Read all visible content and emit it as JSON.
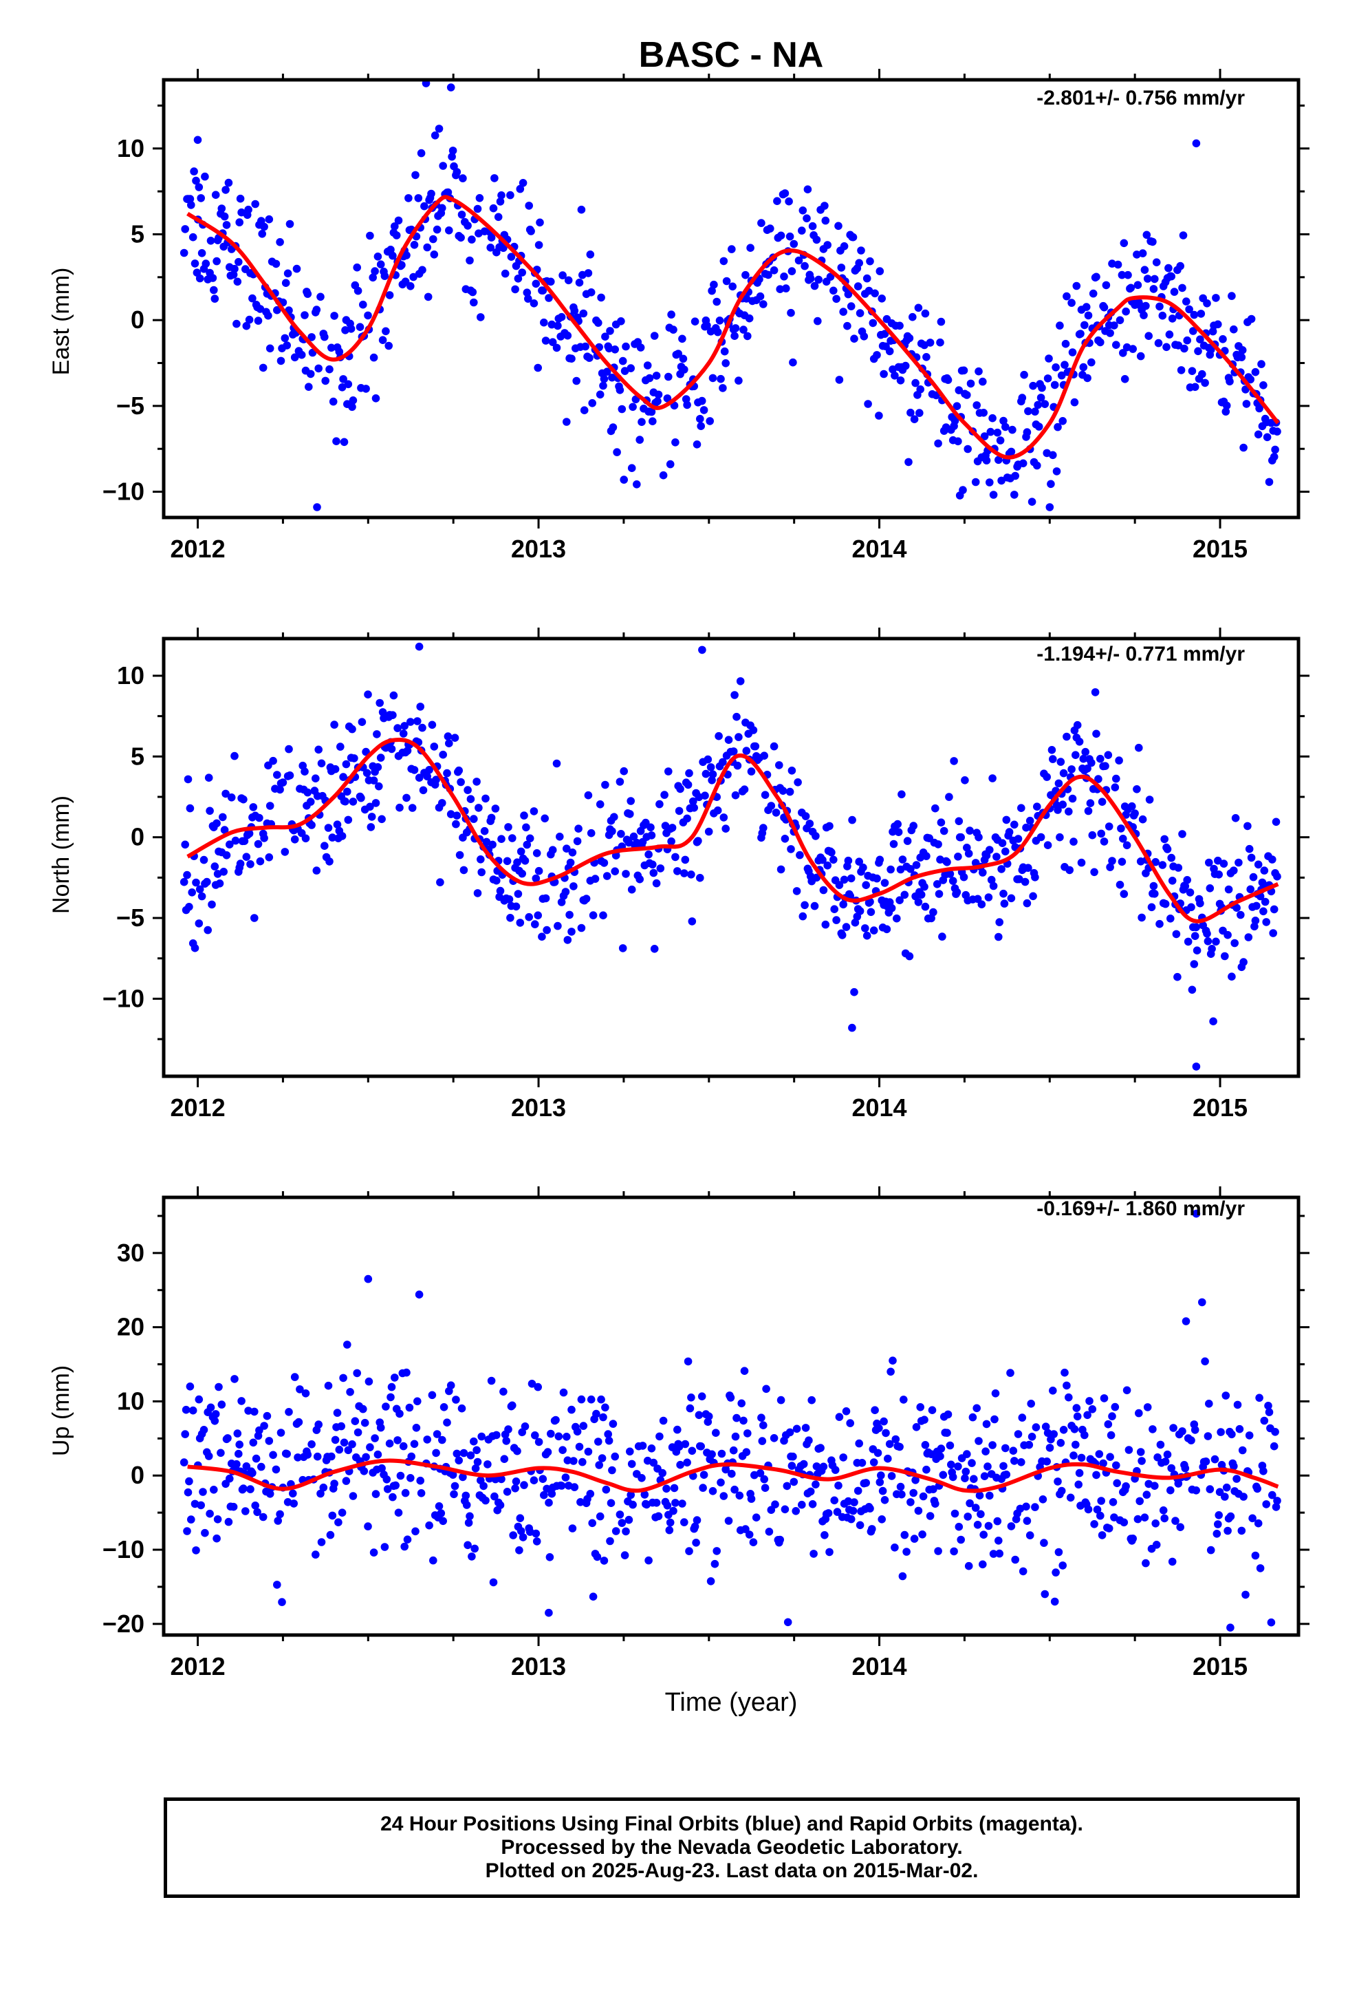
{
  "chart_data": [
    {
      "type": "scatter",
      "panel": "east",
      "title": "BASC - NA",
      "ylabel": "East (mm)",
      "xlabel": "",
      "rate_label": "-2.801+/- 0.756 mm/yr",
      "xlim": [
        2011.9,
        2015.23
      ],
      "ylim": [
        -11.5,
        14
      ],
      "x_ticks": [
        2012,
        2013,
        2014,
        2015
      ],
      "x_tick_labels": [
        "2012",
        "2013",
        "2014",
        "2015"
      ],
      "y_ticks": [
        -10,
        -5,
        0,
        5,
        10
      ],
      "y_tick_labels": [
        "−10",
        "−5",
        "0",
        "5",
        "10"
      ],
      "grid": false,
      "series": [
        {
          "kind": "points",
          "color": "#0000ff",
          "mean_curve": "fit",
          "scatter": 2.2,
          "outliers": [
            [
              2012.35,
              -10.9
            ],
            [
              2012.67,
              13.8
            ],
            [
              2014.5,
              -10.9
            ],
            [
              2014.93,
              10.3
            ],
            [
              2012.0,
              10.5
            ]
          ]
        },
        {
          "kind": "fit",
          "color": "#ff0000",
          "x": [
            2011.97,
            2012.1,
            2012.2,
            2012.3,
            2012.4,
            2012.5,
            2012.6,
            2012.7,
            2012.75,
            2012.85,
            2013.0,
            2013.1,
            2013.2,
            2013.3,
            2013.37,
            2013.5,
            2013.6,
            2013.72,
            2013.85,
            2014.0,
            2014.15,
            2014.25,
            2014.38,
            2014.5,
            2014.6,
            2014.7,
            2014.75,
            2014.85,
            2014.95,
            2015.05,
            2015.17
          ],
          "y": [
            6.2,
            4.5,
            2.0,
            -0.7,
            -2.3,
            -0.5,
            4.0,
            6.8,
            7.0,
            5.5,
            2.5,
            0.0,
            -2.5,
            -4.5,
            -5.0,
            -2.5,
            1.5,
            4.0,
            3.0,
            0.0,
            -3.5,
            -6.0,
            -8.0,
            -6.0,
            -1.5,
            0.7,
            1.3,
            1.0,
            -0.8,
            -3.0,
            -6.0
          ]
        }
      ]
    },
    {
      "type": "scatter",
      "panel": "north",
      "ylabel": "North (mm)",
      "xlabel": "",
      "rate_label": "-1.194+/- 0.771 mm/yr",
      "xlim": [
        2011.9,
        2015.23
      ],
      "ylim": [
        -14.8,
        12.3
      ],
      "x_ticks": [
        2012,
        2013,
        2014,
        2015
      ],
      "x_tick_labels": [
        "2012",
        "2013",
        "2014",
        "2015"
      ],
      "y_ticks": [
        -10,
        -5,
        0,
        5,
        10
      ],
      "y_tick_labels": [
        "−10",
        "−5",
        "0",
        "5",
        "10"
      ],
      "grid": false,
      "series": [
        {
          "kind": "points",
          "color": "#0000ff",
          "mean_curve": "fit",
          "scatter": 2.0,
          "outliers": [
            [
              2012.65,
              11.8
            ],
            [
              2013.48,
              11.6
            ],
            [
              2013.92,
              -11.8
            ],
            [
              2014.93,
              -14.2
            ],
            [
              2014.98,
              -11.4
            ]
          ]
        },
        {
          "kind": "fit",
          "color": "#ff0000",
          "x": [
            2011.97,
            2012.1,
            2012.2,
            2012.3,
            2012.4,
            2012.5,
            2012.57,
            2012.65,
            2012.75,
            2012.85,
            2012.95,
            2013.05,
            2013.2,
            2013.35,
            2013.45,
            2013.58,
            2013.7,
            2013.8,
            2013.9,
            2014.0,
            2014.1,
            2014.2,
            2014.3,
            2014.4,
            2014.5,
            2014.58,
            2014.65,
            2014.75,
            2014.85,
            2014.93,
            2015.05,
            2015.17
          ],
          "y": [
            -1.2,
            0.3,
            0.6,
            0.8,
            2.5,
            5.0,
            6.0,
            5.5,
            2.5,
            -1.0,
            -2.8,
            -2.5,
            -1.0,
            -0.6,
            0.0,
            5.0,
            2.5,
            -1.5,
            -3.8,
            -3.5,
            -2.5,
            -2.0,
            -1.8,
            -1.0,
            2.0,
            3.7,
            3.0,
            0.0,
            -3.5,
            -5.2,
            -4.0,
            -2.9
          ]
        }
      ]
    },
    {
      "type": "scatter",
      "panel": "up",
      "ylabel": "Up (mm)",
      "xlabel": "Time (year)",
      "rate_label": "-0.169+/- 1.860 mm/yr",
      "xlim": [
        2011.9,
        2015.23
      ],
      "ylim": [
        -21.5,
        37.5
      ],
      "x_ticks": [
        2012,
        2013,
        2014,
        2015
      ],
      "x_tick_labels": [
        "2012",
        "2013",
        "2014",
        "2015"
      ],
      "y_ticks": [
        -20,
        -10,
        0,
        10,
        20,
        30
      ],
      "y_tick_labels": [
        "−20",
        "−10",
        "0",
        "10",
        "20",
        "30"
      ],
      "grid": false,
      "series": [
        {
          "kind": "points",
          "color": "#0000ff",
          "mean_curve": "fit",
          "scatter": 6.0,
          "outliers": [
            [
              2012.5,
              26.5
            ],
            [
              2012.65,
              24.4
            ],
            [
              2014.93,
              35.3
            ],
            [
              2014.9,
              20.8
            ],
            [
              2015.03,
              -20.5
            ],
            [
              2015.15,
              -19.8
            ],
            [
              2013.03,
              -18.5
            ]
          ]
        },
        {
          "kind": "fit",
          "color": "#ff0000",
          "x": [
            2011.97,
            2012.1,
            2012.25,
            2012.4,
            2012.55,
            2012.7,
            2012.85,
            2013.0,
            2013.1,
            2013.2,
            2013.3,
            2013.45,
            2013.55,
            2013.7,
            2013.85,
            2014.0,
            2014.15,
            2014.25,
            2014.35,
            2014.5,
            2014.6,
            2014.7,
            2014.85,
            2015.0,
            2015.1,
            2015.17
          ],
          "y": [
            1.2,
            0.5,
            -1.8,
            0.5,
            2.0,
            1.2,
            0.0,
            1.0,
            0.5,
            -1.0,
            -2.0,
            0.5,
            1.5,
            0.8,
            -0.5,
            1.0,
            -0.5,
            -2.0,
            -1.5,
            1.0,
            1.5,
            0.5,
            -0.3,
            0.8,
            -0.3,
            -1.5
          ]
        }
      ]
    }
  ],
  "footer": {
    "line1": "24 Hour Positions Using Final Orbits (blue) and Rapid Orbits (magenta).",
    "line2": "Processed by the Nevada Geodetic Laboratory.",
    "line3": "Plotted on 2025-Aug-23. Last data on 2015-Mar-02."
  }
}
